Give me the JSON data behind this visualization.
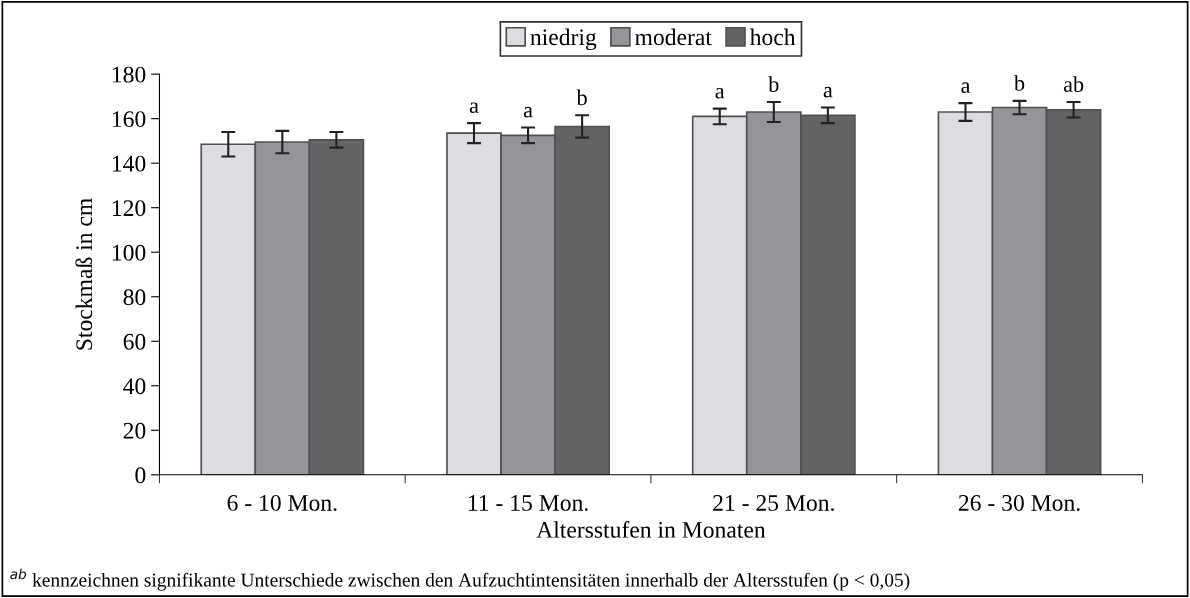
{
  "chart_data": {
    "type": "bar",
    "xlabel": "Altersstufen in Monaten",
    "ylabel": "Stockmaß in cm",
    "categories": [
      "6 - 10 Mon.",
      "11 - 15 Mon.",
      "21 - 25 Mon.",
      "26 - 30 Mon."
    ],
    "series": [
      {
        "name": "niedrig",
        "color": "#dcdde0",
        "values": [
          148.5,
          153.5,
          161,
          163
        ],
        "errors": [
          5.5,
          4.5,
          3.5,
          4
        ],
        "value_labels": [
          null,
          "a",
          "a",
          "a"
        ]
      },
      {
        "name": "moderat",
        "color": "#939598",
        "values": [
          149.5,
          152.5,
          163,
          165
        ],
        "errors": [
          5,
          3.5,
          4.5,
          3
        ],
        "value_labels": [
          null,
          "a",
          "b",
          "b"
        ]
      },
      {
        "name": "hoch",
        "color": "#626365",
        "values": [
          150.5,
          156.5,
          161.5,
          164
        ],
        "errors": [
          3.5,
          5,
          3.5,
          3.5
        ],
        "value_labels": [
          null,
          "b",
          "a",
          "ab"
        ]
      }
    ],
    "ylim": [
      0,
      180
    ],
    "yticks": [
      0,
      20,
      40,
      60,
      80,
      100,
      120,
      140,
      160,
      180
    ],
    "grid": false,
    "legend": "top",
    "annotations": [
      "$^{ab}$ kennzeichnen signifikante Unterschiede zwischen den Aufzuchtintensitäten innerhalb der Altersstufen (p < 0,05)"
    ]
  }
}
